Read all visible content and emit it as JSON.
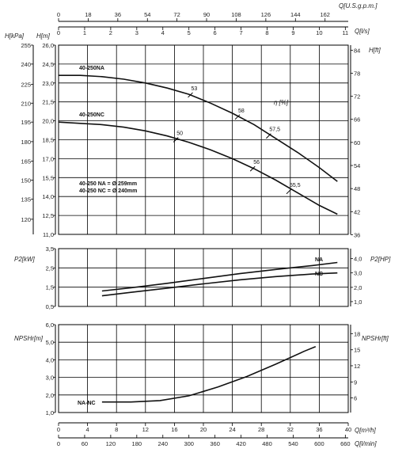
{
  "chart_data": [
    {
      "type": "line",
      "panel": "head",
      "ylabel_left_kpa": "H[kPa]",
      "ylabel_left_m": "H[m]",
      "ylabel_right": "H[ft]",
      "efficiency_label": "η [%]",
      "ylim_m": [
        11,
        26
      ],
      "yticks_m": [
        "26,0",
        "24,5",
        "23,0",
        "21,5",
        "20,0",
        "18,5",
        "17,0",
        "15,5",
        "14,0",
        "12,5",
        "11,0"
      ],
      "yticks_kpa": [
        "255",
        "240",
        "225",
        "210",
        "195",
        "180",
        "165",
        "150",
        "135",
        "120"
      ],
      "yticks_kpa_values": [
        26.0,
        24.5,
        22.9,
        21.4,
        19.9,
        18.35,
        16.8,
        15.3,
        13.8,
        12.2
      ],
      "yticks_ft": [
        "84",
        "78",
        "72",
        "66",
        "60",
        "54",
        "48",
        "42",
        "36"
      ],
      "yticks_ft_values": [
        25.6,
        23.77,
        21.95,
        20.12,
        18.29,
        16.46,
        14.63,
        12.8,
        10.97
      ],
      "annotation_lines": [
        "40-250 NA = Ø 259mm",
        "40-250 NC = Ø 240mm"
      ],
      "series": [
        {
          "name": "40-250NA",
          "x": [
            0,
            3,
            6,
            9,
            12,
            15,
            18,
            21,
            24,
            27,
            30,
            33,
            36,
            38.5
          ],
          "values": [
            23.6,
            23.6,
            23.5,
            23.3,
            23.0,
            22.6,
            22.1,
            21.4,
            20.6,
            19.7,
            18.6,
            17.5,
            16.3,
            15.2
          ]
        },
        {
          "name": "40-250NC",
          "x": [
            0,
            3,
            6,
            9,
            12,
            15,
            18,
            21,
            24,
            27,
            30,
            33,
            36,
            38.5
          ],
          "values": [
            19.9,
            19.8,
            19.7,
            19.5,
            19.2,
            18.8,
            18.3,
            17.7,
            17.0,
            16.2,
            15.3,
            14.3,
            13.3,
            12.6
          ]
        }
      ],
      "efficiency_points": [
        {
          "label": "53",
          "x": 18.2,
          "y": 22.05
        },
        {
          "label": "58",
          "x": 24.7,
          "y": 20.3
        },
        {
          "label": "57,5",
          "x": 29,
          "y": 18.8
        },
        {
          "label": "50",
          "x": 16.2,
          "y": 18.5
        },
        {
          "label": "56",
          "x": 26.8,
          "y": 16.2
        },
        {
          "label": "55,5",
          "x": 31.8,
          "y": 14.4
        }
      ]
    },
    {
      "type": "line",
      "panel": "power",
      "ylabel_left": "P2[kW]",
      "ylabel_right": "P2[HP]",
      "ylim": [
        0.5,
        3.5
      ],
      "yticks_left": [
        "3,5",
        "2,5",
        "1,5",
        "0,5"
      ],
      "yticks_left_values": [
        3.5,
        2.5,
        1.5,
        0.5
      ],
      "yticks_right": [
        "4,0",
        "3,0",
        "2,0",
        "1,0"
      ],
      "yticks_right_values": [
        2.98,
        2.24,
        1.49,
        0.75
      ],
      "series": [
        {
          "name": "NA",
          "x": [
            6,
            10,
            15,
            20,
            25,
            30,
            35,
            38.5
          ],
          "values": [
            1.3,
            1.47,
            1.7,
            1.95,
            2.2,
            2.42,
            2.62,
            2.78
          ]
        },
        {
          "name": "NC",
          "x": [
            6,
            10,
            15,
            20,
            25,
            30,
            35,
            38.5
          ],
          "values": [
            1.05,
            1.23,
            1.45,
            1.67,
            1.88,
            2.05,
            2.18,
            2.24
          ]
        }
      ]
    },
    {
      "type": "line",
      "panel": "npsh",
      "ylabel_left": "NPSHr[m]",
      "ylabel_right": "NPSHr[ft]",
      "ylim": [
        1.0,
        6.0
      ],
      "yticks_left": [
        "6,0",
        "5,0",
        "4,0",
        "3,0",
        "2,0",
        "1,0"
      ],
      "yticks_left_values": [
        6,
        5,
        4,
        3,
        2,
        1
      ],
      "yticks_right": [
        "18",
        "15",
        "12",
        "9",
        "6"
      ],
      "yticks_right_values": [
        5.49,
        4.57,
        3.66,
        2.74,
        1.83
      ],
      "series": [
        {
          "name": "NA-NC",
          "x": [
            6,
            10,
            14,
            18,
            22,
            26,
            30,
            34,
            35.5
          ],
          "values": [
            1.6,
            1.6,
            1.68,
            1.95,
            2.45,
            3.05,
            3.75,
            4.5,
            4.75
          ]
        }
      ]
    }
  ],
  "axes": {
    "top_usgpm": {
      "label": "Q[U.S.g.p.m.]",
      "ticks": [
        "0",
        "18",
        "36",
        "54",
        "72",
        "90",
        "108",
        "126",
        "144",
        "162"
      ],
      "values": [
        0,
        4.09,
        8.18,
        12.27,
        16.35,
        20.44,
        24.53,
        28.62,
        32.71,
        36.8
      ]
    },
    "top_ls": {
      "label": "Q[l/s]",
      "ticks": [
        "0",
        "1",
        "2",
        "3",
        "4",
        "5",
        "6",
        "7",
        "8",
        "9",
        "10",
        "11"
      ],
      "values": [
        0,
        3.6,
        7.2,
        10.8,
        14.4,
        18,
        21.6,
        25.2,
        28.8,
        32.4,
        36,
        39.6
      ]
    },
    "bottom_m3h": {
      "label": "Q[m³/h]",
      "ticks": [
        "0",
        "4",
        "8",
        "12",
        "16",
        "20",
        "24",
        "28",
        "32",
        "36",
        "40"
      ],
      "values": [
        0,
        4,
        8,
        12,
        16,
        20,
        24,
        28,
        32,
        36,
        40
      ]
    },
    "bottom_lmin": {
      "label": "Q[l/min]",
      "ticks": [
        "0",
        "60",
        "120",
        "180",
        "240",
        "300",
        "360",
        "420",
        "480",
        "540",
        "600",
        "660"
      ],
      "values": [
        0,
        3.6,
        7.2,
        10.8,
        14.4,
        18,
        21.6,
        25.2,
        28.8,
        32.4,
        36,
        39.6
      ]
    },
    "xlim": [
      0,
      40
    ]
  }
}
